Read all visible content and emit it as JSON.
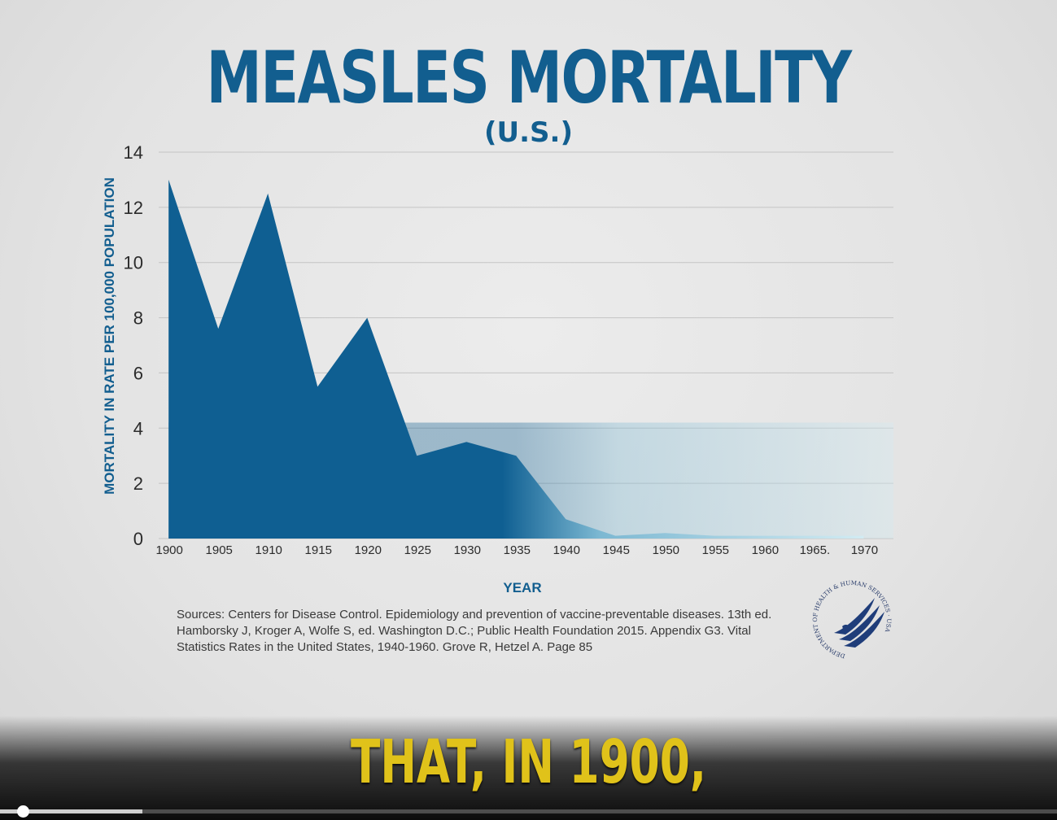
{
  "title": "MEASLES MORTALITY",
  "subtitle": "(U.S.)",
  "source": "Sources: Centers for Disease Control. Epidemiology and prevention of vaccine-preventable diseases. 13th ed. Hamborsky J, Kroger A, Wolfe S, ed. Washington D.C.; Public Health Foundation 2015. Appendix G3. Vital Statistics Rates in the United States, 1940-1960. Grove R, Hetzel A. Page 85",
  "seal_text": "DEPARTMENT OF HEALTH & HUMAN SERVICES · USA",
  "caption": "THAT, IN 1900,",
  "video": {
    "progress": 0.135
  },
  "colors": {
    "accent": "#125e8f",
    "area_dark": "#0f5f92",
    "area_light": "#c9e6ef",
    "caption": "#e0c21a"
  },
  "chart_data": {
    "type": "area",
    "title": "MEASLES MORTALITY",
    "subtitle": "(U.S.)",
    "xlabel": "YEAR",
    "ylabel": "MORTALITY IN RATE PER 100,000 POPULATION",
    "xlim": [
      1899,
      1973
    ],
    "ylim": [
      0,
      14
    ],
    "yticks": [
      0,
      2,
      4,
      6,
      8,
      10,
      12,
      14
    ],
    "xticks": [
      {
        "value": 1900,
        "label": "1900"
      },
      {
        "value": 1905,
        "label": "1905"
      },
      {
        "value": 1910,
        "label": "1910"
      },
      {
        "value": 1915,
        "label": "1915"
      },
      {
        "value": 1920,
        "label": "1920"
      },
      {
        "value": 1925,
        "label": "1925"
      },
      {
        "value": 1930,
        "label": "1930"
      },
      {
        "value": 1935,
        "label": "1935"
      },
      {
        "value": 1940,
        "label": "1940"
      },
      {
        "value": 1945,
        "label": "1945"
      },
      {
        "value": 1950,
        "label": "1950"
      },
      {
        "value": 1955,
        "label": "1955"
      },
      {
        "value": 1960,
        "label": "1960"
      },
      {
        "value": 1965,
        "label": "1965."
      },
      {
        "value": 1970,
        "label": "1970"
      }
    ],
    "grid": true,
    "x": [
      1900,
      1905,
      1910,
      1915,
      1920,
      1925,
      1930,
      1935,
      1940,
      1945,
      1950,
      1955,
      1960,
      1965,
      1970
    ],
    "values": [
      13.0,
      7.6,
      12.5,
      5.5,
      8.0,
      3.0,
      3.5,
      3.0,
      0.7,
      0.1,
      0.2,
      0.1,
      0.1,
      0.1,
      0.1
    ]
  }
}
